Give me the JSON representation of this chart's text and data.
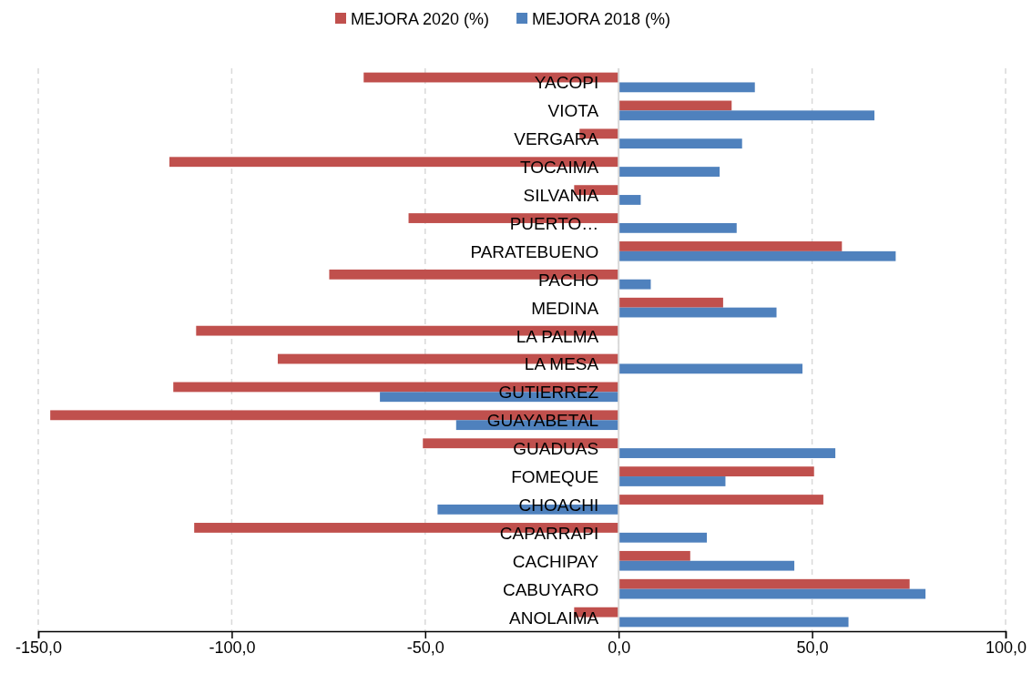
{
  "chart_data": {
    "type": "bar",
    "orientation": "horizontal",
    "categories": [
      "YACOPI",
      "VIOTA",
      "VERGARA",
      "TOCAIMA",
      "SILVANIA",
      "PUERTO…",
      "PARATEBUENO",
      "PACHO",
      "MEDINA",
      "LA PALMA",
      "LA MESA",
      "GUTIERREZ",
      "GUAYABETAL",
      "GUADUAS",
      "FOMEQUE",
      "CHOACHI",
      "CAPARRAPI",
      "CACHIPAY",
      "CABUYARO",
      "ANOLAIMA"
    ],
    "series": [
      {
        "name": "MEJORA 2020 (%)",
        "color": "#c0504d",
        "values": [
          -65.9,
          29.2,
          -10.1,
          -116.1,
          -11.5,
          -54.3,
          57.7,
          -74.8,
          27.0,
          -109.2,
          -88.1,
          -115.1,
          -146.9,
          -50.6,
          50.5,
          52.9,
          -109.7,
          18.5,
          75.2,
          -11.5
        ]
      },
      {
        "name": "MEJORA 2018 (%)",
        "color": "#4f81bd",
        "values": [
          35.2,
          66.1,
          31.9,
          26.1,
          5.7,
          30.5,
          71.6,
          8.3,
          40.8,
          null,
          47.5,
          -61.7,
          -42.0,
          56.0,
          27.6,
          -46.8,
          22.8,
          45.4,
          79.3,
          59.4
        ]
      }
    ],
    "xlim": [
      -150,
      100
    ],
    "xticks": [
      {
        "value": -150,
        "label": "-150,0"
      },
      {
        "value": -100,
        "label": "-100,0"
      },
      {
        "value": -50,
        "label": "-50,0"
      },
      {
        "value": 0,
        "label": "0,0"
      },
      {
        "value": 50,
        "label": "50,0"
      },
      {
        "value": 100,
        "label": "100,0"
      }
    ],
    "grid": "x",
    "legend": "top"
  }
}
